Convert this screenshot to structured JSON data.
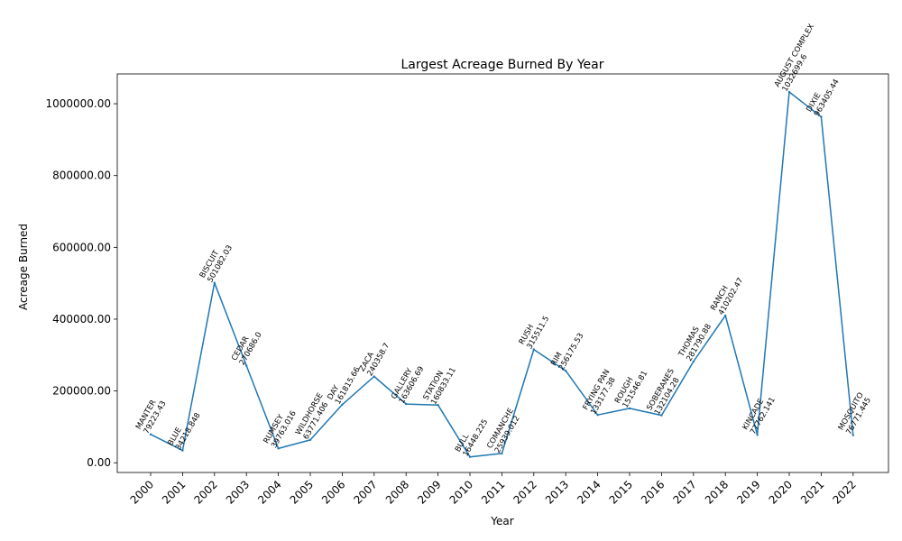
{
  "chart_data": {
    "type": "line",
    "title": "Largest Acreage Burned By Year",
    "xlabel": "Year",
    "ylabel": "Acreage Burned",
    "x": [
      "2000",
      "2001",
      "2002",
      "2003",
      "2004",
      "2005",
      "2006",
      "2007",
      "2008",
      "2009",
      "2010",
      "2011",
      "2012",
      "2013",
      "2014",
      "2015",
      "2016",
      "2017",
      "2018",
      "2019",
      "2020",
      "2021",
      "2022"
    ],
    "values": [
      79223.43,
      34218.848,
      501082.03,
      270686.0,
      39763.016,
      63771.406,
      161815.66,
      240358.7,
      163606.69,
      160833.11,
      16448.225,
      25939.012,
      315511.5,
      256175.53,
      133177.38,
      151546.81,
      132104.28,
      281790.88,
      410202.47,
      77762.141,
      1032699.6,
      963405.44,
      76771.445
    ],
    "annotations": [
      "MANTER",
      "BLUE",
      "BISCUIT",
      "CEDAR",
      "RUMSEY",
      "WILDHORSE",
      "DAY",
      "ZACA",
      "GALLERY",
      "STATION",
      "BULL",
      "COMANCHE",
      "RUSH",
      "RIM",
      "FRYING PAN",
      "ROUGH",
      "SOBERANES",
      "THOMAS",
      "RANCH",
      "KINCADE",
      "AUGUST COMPLEX",
      "DIXIE",
      "MOSQUITO"
    ],
    "value_labels": [
      "79223.43",
      "34218.848",
      "501082.03",
      "270686.0",
      "39763.016",
      "63771.406",
      "161815.66",
      "240358.7",
      "163606.69",
      "160833.11",
      "16448.225",
      "25939.012",
      "315511.5",
      "256175.53",
      "133177.38",
      "151546.81",
      "132104.28",
      "281790.88",
      "410202.47",
      "77762.141",
      "1032699.6",
      "963405.44",
      "76771.445"
    ],
    "yticks": [
      "0.00",
      "200000.00",
      "400000.00",
      "600000.00",
      "800000.00",
      "1000000.00"
    ],
    "ylim": [
      -27000,
      1083000
    ],
    "grid": false,
    "line_color": "#1f77b4"
  }
}
